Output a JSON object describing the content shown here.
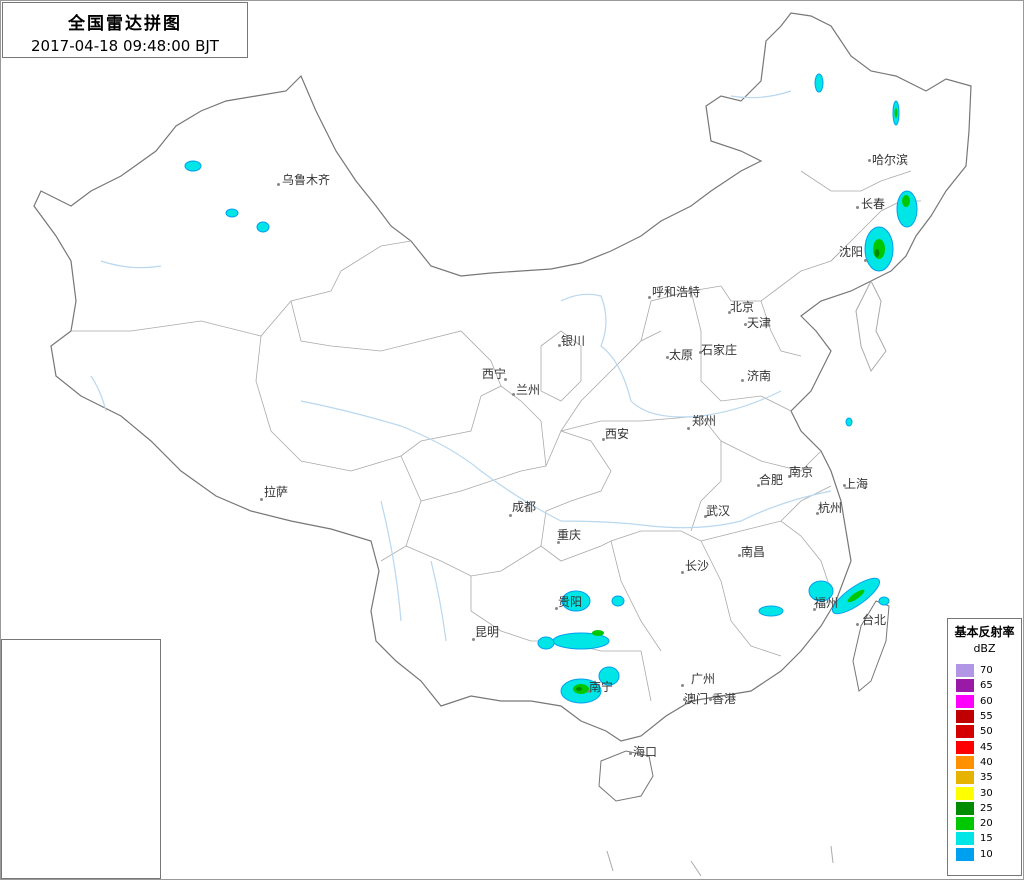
{
  "title": {
    "main": "全国雷达拼图",
    "timestamp": "2017-04-18 09:48:00 BJT"
  },
  "cities": [
    {
      "name": "乌鲁木齐"
    },
    {
      "name": "哈尔滨"
    },
    {
      "name": "长春"
    },
    {
      "name": "沈阳"
    },
    {
      "name": "呼和浩特"
    },
    {
      "name": "北京"
    },
    {
      "name": "天津"
    },
    {
      "name": "银川"
    },
    {
      "name": "太原"
    },
    {
      "name": "石家庄"
    },
    {
      "name": "西宁"
    },
    {
      "name": "兰州"
    },
    {
      "name": "济南"
    },
    {
      "name": "郑州"
    },
    {
      "name": "西安"
    },
    {
      "name": "拉萨"
    },
    {
      "name": "合肥"
    },
    {
      "name": "南京"
    },
    {
      "name": "上海"
    },
    {
      "name": "成都"
    },
    {
      "name": "武汉"
    },
    {
      "name": "杭州"
    },
    {
      "name": "重庆"
    },
    {
      "name": "长沙"
    },
    {
      "name": "南昌"
    },
    {
      "name": "贵阳"
    },
    {
      "name": "福州"
    },
    {
      "name": "昆明"
    },
    {
      "name": "台北"
    },
    {
      "name": "南宁"
    },
    {
      "name": "广州"
    },
    {
      "name": "澳门"
    },
    {
      "name": "香港"
    },
    {
      "name": "海口"
    }
  ],
  "legend": {
    "title": "基本反射率",
    "unit": "dBZ",
    "items": [
      {
        "value": "70",
        "color": "#b296e6"
      },
      {
        "value": "65",
        "color": "#9a1aa8"
      },
      {
        "value": "60",
        "color": "#ff00ff"
      },
      {
        "value": "55",
        "color": "#c00000"
      },
      {
        "value": "50",
        "color": "#d40000"
      },
      {
        "value": "45",
        "color": "#ff0000"
      },
      {
        "value": "40",
        "color": "#ff9000"
      },
      {
        "value": "35",
        "color": "#e6b400"
      },
      {
        "value": "30",
        "color": "#ffff00"
      },
      {
        "value": "25",
        "color": "#008c00"
      },
      {
        "value": "20",
        "color": "#00c800"
      },
      {
        "value": "15",
        "color": "#00e6e6"
      },
      {
        "value": "10",
        "color": "#00a0f0"
      }
    ]
  }
}
